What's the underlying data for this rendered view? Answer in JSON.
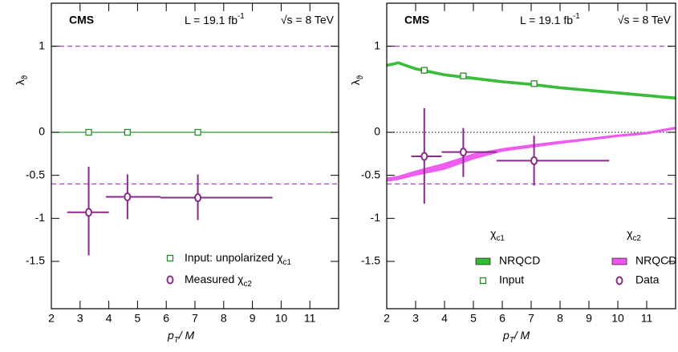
{
  "chart_data": [
    {
      "type": "errorbar",
      "title": "CMS",
      "lumi": "L = 19.1 fb",
      "lumi_sup": "-1",
      "energy": "√s = 8 TeV",
      "ylabel": "λ",
      "ylabel_sub": "ϑ",
      "xlabel": "p",
      "xlabel_sub": "T",
      "xlabel_rest": "/ M",
      "xlim": [
        2,
        12
      ],
      "ylim": [
        -2.05,
        1.5
      ],
      "xticks": [
        2,
        3,
        4,
        5,
        6,
        7,
        8,
        9,
        10,
        11
      ],
      "yticks": [
        -1.5,
        -1,
        -0.5,
        0,
        1
      ],
      "hlines": [
        {
          "value": 1,
          "color": "#aa44cc",
          "style": "dashed"
        },
        {
          "value": -0.6,
          "color": "#aa44cc",
          "style": "dashed"
        },
        {
          "value": 0,
          "color": "#33993a",
          "style": "solid"
        }
      ],
      "series": [
        {
          "name": "Input: unpolarized χ",
          "name_sub": "c1",
          "color": "#2a8a2a",
          "marker": "square",
          "x": [
            3.3,
            4.65,
            7.1
          ],
          "values": [
            0,
            0,
            0
          ]
        },
        {
          "name": "Measured χ",
          "name_sub": "c2",
          "color": "#8a2a8a",
          "marker": "circle",
          "x": [
            3.3,
            4.65,
            7.1
          ],
          "values": [
            -0.93,
            -0.75,
            -0.76
          ],
          "yerr_minus": [
            0.5,
            0.26,
            0.26
          ],
          "yerr_plus": [
            0.53,
            0.26,
            0.27
          ],
          "xerr_minus": [
            0.75,
            0.75,
            1.3
          ],
          "xerr_plus": [
            0.7,
            1.15,
            2.6
          ]
        }
      ]
    },
    {
      "type": "errorbar",
      "title": "CMS",
      "lumi": "L = 19.1 fb",
      "lumi_sup": "-1",
      "energy": "√s = 8 TeV",
      "ylabel": "λ",
      "ylabel_sub": "ϑ",
      "xlabel": "p",
      "xlabel_sub": "T",
      "xlabel_rest": "/ M",
      "xlim": [
        2,
        12
      ],
      "ylim": [
        -2.05,
        1.5
      ],
      "xticks": [
        2,
        3,
        4,
        5,
        6,
        7,
        8,
        9,
        10,
        11
      ],
      "yticks": [
        -1.5,
        -1,
        -0.5,
        0,
        1
      ],
      "hlines": [
        {
          "value": 1,
          "color": "#aa44cc",
          "style": "dashed"
        },
        {
          "value": -0.6,
          "color": "#aa44cc",
          "style": "dashed"
        },
        {
          "value": 0,
          "color": "#333333",
          "style": "dotted"
        }
      ],
      "legend_groups": [
        {
          "header": "χ",
          "header_sub": "c1"
        },
        {
          "header": "χ",
          "header_sub": "c2"
        }
      ],
      "series": [
        {
          "name": "NRQCD",
          "group": 0,
          "kind": "band",
          "color": "#33bb33",
          "x": [
            2,
            2.4,
            3,
            4,
            5,
            6,
            7,
            8,
            9,
            10,
            11,
            12
          ],
          "upper": [
            0.79,
            0.82,
            0.75,
            0.68,
            0.64,
            0.6,
            0.57,
            0.53,
            0.5,
            0.47,
            0.44,
            0.41
          ],
          "lower": [
            0.765,
            0.795,
            0.725,
            0.655,
            0.615,
            0.575,
            0.545,
            0.505,
            0.475,
            0.445,
            0.415,
            0.385
          ]
        },
        {
          "name": "Input",
          "group": 0,
          "color": "#2a8a2a",
          "marker": "square",
          "x": [
            3.3,
            4.65,
            7.1
          ],
          "values": [
            0.72,
            0.655,
            0.565
          ]
        },
        {
          "name": "NRQCD",
          "group": 1,
          "kind": "band",
          "color": "#ee55ee",
          "x": [
            2,
            2.4,
            3,
            4,
            5,
            6,
            7,
            8,
            9,
            10,
            11,
            12
          ],
          "upper": [
            -0.53,
            -0.51,
            -0.45,
            -0.36,
            -0.25,
            -0.19,
            -0.145,
            -0.105,
            -0.07,
            -0.03,
            0.0,
            0.06
          ],
          "lower": [
            -0.57,
            -0.55,
            -0.5,
            -0.43,
            -0.31,
            -0.22,
            -0.175,
            -0.13,
            -0.09,
            -0.05,
            -0.02,
            0.04
          ]
        },
        {
          "name": "Data",
          "group": 1,
          "color": "#8a2a8a",
          "marker": "circle",
          "x": [
            3.3,
            4.65,
            7.1
          ],
          "values": [
            -0.28,
            -0.23,
            -0.33
          ],
          "yerr_minus": [
            0.55,
            0.29,
            0.29
          ],
          "yerr_plus": [
            0.56,
            0.28,
            0.29
          ],
          "xerr_minus": [
            0.45,
            0.75,
            1.3
          ],
          "xerr_plus": [
            0.6,
            1.15,
            2.6
          ]
        }
      ]
    }
  ]
}
